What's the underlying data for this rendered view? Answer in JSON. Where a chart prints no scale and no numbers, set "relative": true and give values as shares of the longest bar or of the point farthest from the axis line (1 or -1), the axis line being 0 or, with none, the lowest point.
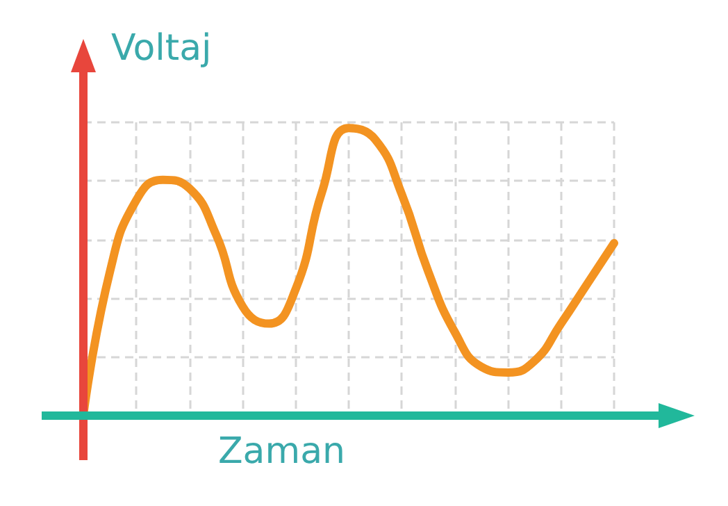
{
  "chart_data": {
    "type": "line",
    "xlabel": "Zaman",
    "ylabel": "Voltaj",
    "relative": true,
    "grid": true,
    "marker": "none",
    "line_style": "solid",
    "categories": [
      null,
      null,
      null,
      null,
      null,
      null,
      null,
      null,
      null,
      null,
      null,
      null,
      null,
      null,
      null,
      null,
      null,
      null,
      null,
      null,
      null
    ],
    "series": [
      {
        "color": "#f39321",
        "values": [
          0,
          0.5,
          0.75,
          0.82,
          0.79,
          0.63,
          0.38,
          0.32,
          0.44,
          0.78,
          1,
          0.96,
          0.77,
          0.5,
          0.29,
          0.17,
          0.15,
          0.19,
          0.32,
          0.46,
          0.6
        ]
      }
    ]
  }
}
